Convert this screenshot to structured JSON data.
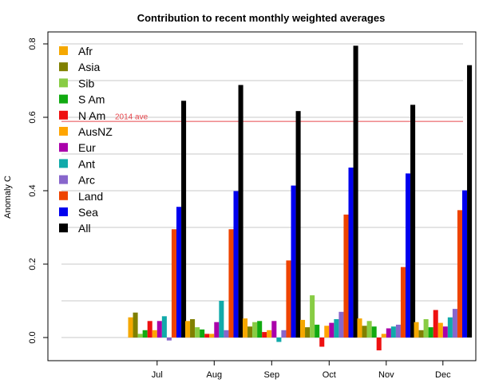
{
  "chart_data": {
    "type": "bar",
    "title": "Contribution to recent monthly weighted averages",
    "ylabel": "Anomaly C",
    "xlabel": "",
    "categories": [
      "Jul",
      "Aug",
      "Sep",
      "Oct",
      "Nov",
      "Dec"
    ],
    "ylim": [
      -0.06,
      0.82
    ],
    "yticks": [
      0.0,
      0.2,
      0.4,
      0.6,
      0.8
    ],
    "ytick_labels": [
      "0.0",
      "0.2",
      "0.4",
      "0.6",
      "0.8"
    ],
    "gridlines": [
      0.0,
      0.1,
      0.2,
      0.3,
      0.4,
      0.5,
      0.6,
      0.7,
      0.8
    ],
    "reference_line": {
      "label": "2014 ave",
      "value": 0.59,
      "color": "#e8474d"
    },
    "legend_position": "top-left",
    "series": [
      {
        "name": "Afr",
        "color": "#f5a800",
        "values": [
          0.055,
          0.045,
          0.052,
          0.048,
          0.052,
          0.042
        ]
      },
      {
        "name": "Asia",
        "color": "#808000",
        "values": [
          0.068,
          0.05,
          0.03,
          0.028,
          0.032,
          0.02
        ]
      },
      {
        "name": "Sib",
        "color": "#88cc44",
        "values": [
          0.01,
          0.028,
          0.042,
          0.115,
          0.045,
          0.05
        ]
      },
      {
        "name": "S Am",
        "color": "#11aa11",
        "values": [
          0.02,
          0.022,
          0.045,
          0.035,
          0.03,
          0.028
        ]
      },
      {
        "name": "N Am",
        "color": "#ee1111",
        "values": [
          0.045,
          0.01,
          0.015,
          -0.025,
          -0.035,
          0.075
        ]
      },
      {
        "name": "AusNZ",
        "color": "#ffa500",
        "values": [
          0.02,
          0.01,
          0.02,
          0.032,
          0.01,
          0.04
        ]
      },
      {
        "name": "Eur",
        "color": "#aa00aa",
        "values": [
          0.045,
          0.042,
          0.045,
          0.04,
          0.025,
          0.03
        ]
      },
      {
        "name": "Ant",
        "color": "#11aaaa",
        "values": [
          0.058,
          0.1,
          -0.012,
          0.05,
          0.03,
          0.055
        ]
      },
      {
        "name": "Arc",
        "color": "#8866cc",
        "values": [
          -0.008,
          0.02,
          0.02,
          0.07,
          0.035,
          0.078
        ]
      },
      {
        "name": "Land",
        "color": "#ee4400",
        "values": [
          0.295,
          0.295,
          0.21,
          0.335,
          0.192,
          0.347
        ]
      },
      {
        "name": "Sea",
        "color": "#0000ee",
        "values": [
          0.356,
          0.399,
          0.414,
          0.463,
          0.447,
          0.401
        ]
      },
      {
        "name": "All",
        "color": "#000000",
        "values": [
          0.645,
          0.688,
          0.617,
          0.795,
          0.634,
          0.742
        ]
      }
    ]
  }
}
